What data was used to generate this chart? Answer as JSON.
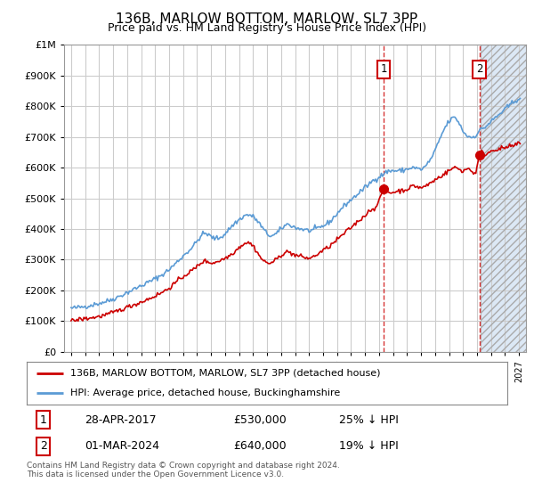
{
  "title": "136B, MARLOW BOTTOM, MARLOW, SL7 3PP",
  "subtitle": "Price paid vs. HM Land Registry's House Price Index (HPI)",
  "legend_label_red": "136B, MARLOW BOTTOM, MARLOW, SL7 3PP (detached house)",
  "legend_label_blue": "HPI: Average price, detached house, Buckinghamshire",
  "footer": "Contains HM Land Registry data © Crown copyright and database right 2024.\nThis data is licensed under the Open Government Licence v3.0.",
  "annotation1_label": "1",
  "annotation1_date": "28-APR-2017",
  "annotation1_price": "£530,000",
  "annotation1_hpi": "25% ↓ HPI",
  "annotation1_year": 2017.33,
  "annotation1_value": 530000,
  "annotation2_label": "2",
  "annotation2_date": "01-MAR-2024",
  "annotation2_price": "£640,000",
  "annotation2_hpi": "19% ↓ HPI",
  "annotation2_year": 2024.17,
  "annotation2_value": 640000,
  "ylim": [
    0,
    1000000
  ],
  "xlim_left": 1994.5,
  "xlim_right": 2027.5,
  "hatch_start": 2024.25,
  "background_color": "#ffffff",
  "plot_bg_color": "#ffffff",
  "grid_color": "#cccccc",
  "hatch_bg_color": "#dce8f5",
  "hpi_color": "#5b9bd5",
  "price_color": "#cc0000",
  "anno_box_color": "#cc0000"
}
